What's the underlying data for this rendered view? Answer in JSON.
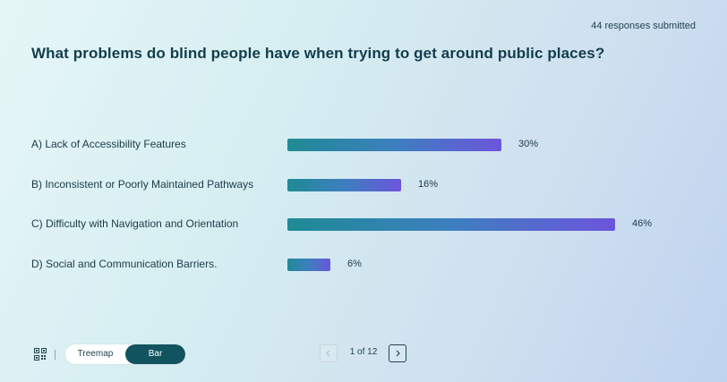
{
  "header": {
    "responses_text": "44 responses submitted",
    "question": "What problems do blind people have when trying to get around public places?"
  },
  "options": [
    {
      "label": "A) Lack of Accessibility Features",
      "percent": 30,
      "percent_text": "30%"
    },
    {
      "label": "B) Inconsistent or Poorly Maintained Pathways",
      "percent": 16,
      "percent_text": "16%"
    },
    {
      "label": "C) Difficulty with Navigation and Orientation",
      "percent": 46,
      "percent_text": "46%"
    },
    {
      "label": "D) Social and Communication Barriers.",
      "percent": 6,
      "percent_text": "6%"
    }
  ],
  "footer": {
    "qr_icon": "qr-code-icon",
    "view_toggle": {
      "treemap_label": "Treemap",
      "bar_label": "Bar",
      "selected": "Bar"
    },
    "pager": {
      "text": "1 of 12",
      "prev_icon": "chevron-left-icon",
      "next_icon": "chevron-right-icon"
    }
  },
  "colors": {
    "bar_start": "#1f8a94",
    "bar_end": "#6c55dc",
    "toggle_active": "#11535e",
    "question_text": "#123d4c"
  }
}
